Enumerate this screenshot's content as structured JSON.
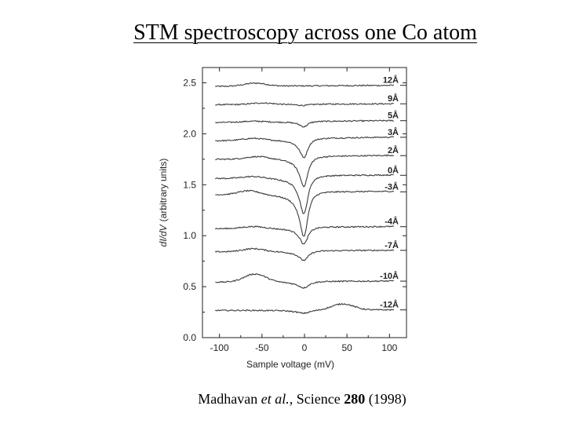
{
  "slide": {
    "title": "STM spectroscopy across one Co atom"
  },
  "citation": {
    "authors": "Madhavan",
    "et_al": "et al.,",
    "journal": "Science",
    "volume": "280",
    "year": "(1998)"
  },
  "colors": {
    "trace": "#3a3a3a",
    "axis": "#222222"
  },
  "chart_data": {
    "type": "line",
    "title": "",
    "xlabel": "Sample voltage (mV)",
    "ylabel_italic": "dI/dV",
    "ylabel_rest": "(arbitrary units)",
    "xlim": [
      -120,
      120
    ],
    "ylim": [
      0.0,
      2.65
    ],
    "xticks": [
      -100,
      -50,
      0,
      50,
      100
    ],
    "xtick_labels": [
      "-100",
      "-50",
      "0",
      "50",
      "100"
    ],
    "yticks": [
      0.0,
      0.5,
      1.0,
      1.5,
      2.0,
      2.5
    ],
    "ytick_labels": [
      "0.0",
      "0.5",
      "1.0",
      "1.5",
      "2.0",
      "2.5"
    ],
    "grid": false,
    "voltage_range": [
      -105,
      105
    ],
    "series": [
      {
        "name": "12Å",
        "label": "12Å",
        "baseline": 2.47,
        "dip": 0.0,
        "width": 6,
        "bump": 0.03,
        "bump_pos": -58,
        "slope": 5e-05
      },
      {
        "name": "9Å",
        "label": "9Å",
        "baseline": 2.29,
        "dip": 0.012,
        "width": 8,
        "bump": 0.015,
        "bump_pos": -50,
        "slope": 4e-05
      },
      {
        "name": "5Å",
        "label": "5Å",
        "baseline": 2.12,
        "dip": 0.05,
        "width": 6,
        "bump": 0.01,
        "bump_pos": -60,
        "slope": 8e-05
      },
      {
        "name": "3Å",
        "label": "3Å",
        "baseline": 1.95,
        "dip": 0.18,
        "width": 6,
        "bump": 0.02,
        "bump_pos": -60,
        "slope": 0.00015
      },
      {
        "name": "2Å",
        "label": "2Å",
        "baseline": 1.77,
        "dip": 0.28,
        "width": 6,
        "bump": 0.025,
        "bump_pos": -55,
        "slope": 0.00015
      },
      {
        "name": "0Å",
        "label": "0Å",
        "baseline": 1.58,
        "dip": 0.36,
        "width": 6,
        "bump": 0.02,
        "bump_pos": -60,
        "slope": 0.00012
      },
      {
        "name": "-3Å",
        "label": "-3Å",
        "baseline": 1.42,
        "dip": 0.42,
        "width": 6,
        "bump": 0.04,
        "bump_pos": -65,
        "slope": 0.0001
      },
      {
        "name": "-4Å",
        "label": "-4Å",
        "baseline": 1.08,
        "dip": 0.16,
        "width": 6,
        "bump": 0.02,
        "bump_pos": -60,
        "slope": 8e-05
      },
      {
        "name": "-7Å",
        "label": "-7Å",
        "baseline": 0.85,
        "dip": 0.09,
        "width": 7,
        "bump": 0.03,
        "bump_pos": -60,
        "slope": 6e-05
      },
      {
        "name": "-10Å",
        "label": "-10Å",
        "baseline": 0.55,
        "dip": 0.06,
        "width": 8,
        "bump": 0.08,
        "bump_pos": -58,
        "slope": 4e-05
      },
      {
        "name": "-12Å",
        "label": "-12Å",
        "baseline": 0.27,
        "dip": 0.03,
        "width": 10,
        "bump": 0.06,
        "bump_pos": 45,
        "slope": 2e-05
      }
    ]
  }
}
